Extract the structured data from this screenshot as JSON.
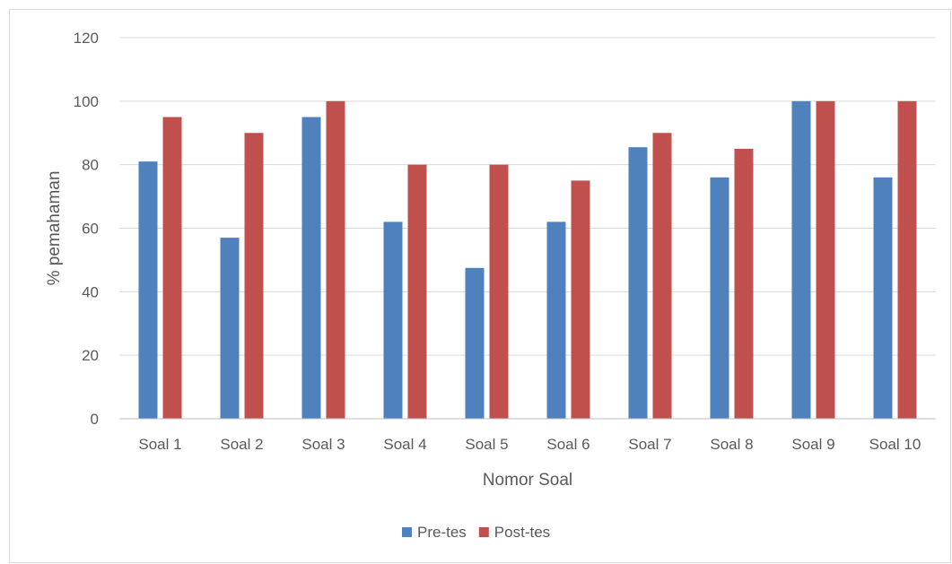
{
  "chart_data": {
    "type": "bar",
    "title": "",
    "xlabel": "Nomor Soal",
    "ylabel": "% pemahaman",
    "ylim": [
      0,
      120
    ],
    "yticks": [
      0,
      20,
      40,
      60,
      80,
      100,
      120
    ],
    "categories": [
      "Soal 1",
      "Soal 2",
      "Soal 3",
      "Soal 4",
      "Soal 5",
      "Soal 6",
      "Soal 7",
      "Soal 8",
      "Soal 9",
      "Soal 10"
    ],
    "series": [
      {
        "name": "Pre-tes",
        "color": "#4f81bd",
        "values": [
          81,
          57,
          95,
          62,
          47.5,
          62,
          85.5,
          76,
          100,
          76
        ]
      },
      {
        "name": "Post-tes",
        "color": "#c0504d",
        "values": [
          95,
          90,
          100,
          80,
          80,
          75,
          90,
          85,
          100,
          100
        ]
      }
    ],
    "grid": true,
    "legend_position": "bottom"
  }
}
